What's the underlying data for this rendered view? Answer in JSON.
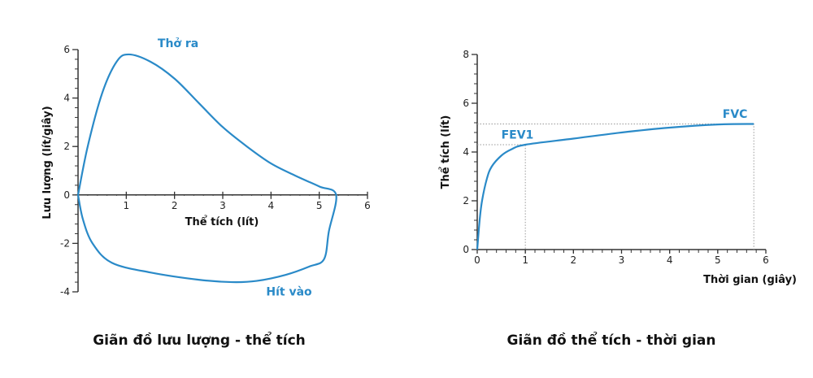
{
  "colors": {
    "curve": "#2a8ac8",
    "axis": "#333333",
    "guide": "#999999"
  },
  "chart_data": [
    {
      "type": "line",
      "caption": "Giãn đồ lưu lượng - thể tích",
      "xlabel": "Thể tích (lít)",
      "ylabel": "Lưu lượng (lít/giây)",
      "xlim": [
        0,
        6
      ],
      "ylim": [
        -4,
        6
      ],
      "xticks": [
        1,
        2,
        3,
        4,
        5,
        6
      ],
      "yticks": [
        -4,
        -2,
        0,
        2,
        4,
        6
      ],
      "grid": false,
      "annotations": [
        {
          "text": "Thở ra",
          "x": 1.65,
          "y": 6.1
        },
        {
          "text": "Hít vào",
          "x": 3.9,
          "y": -4.15
        }
      ],
      "series": [
        {
          "x": [
            0,
            0.2,
            0.5,
            0.8,
            1.05,
            1.5,
            2,
            2.5,
            3,
            3.5,
            4,
            4.5,
            5,
            5.35,
            5.2,
            5.1,
            4.8,
            4.3,
            3.7,
            3.2,
            2.5,
            1.5,
            0.7,
            0.3,
            0.1,
            0
          ],
          "y": [
            0,
            2,
            4.2,
            5.5,
            5.8,
            5.5,
            4.8,
            3.8,
            2.8,
            2.0,
            1.3,
            0.8,
            0.35,
            0,
            -1.5,
            -2.65,
            -2.95,
            -3.3,
            -3.55,
            -3.6,
            -3.5,
            -3.2,
            -2.8,
            -2,
            -1,
            0
          ]
        }
      ]
    },
    {
      "type": "line",
      "caption": "Giãn đồ thể tích - thời gian",
      "xlabel": "Thời gian (giây)",
      "ylabel": "Thể tích (lít)",
      "xlim": [
        0,
        6
      ],
      "ylim": [
        0,
        8
      ],
      "xticks": [
        0,
        1,
        2,
        3,
        4,
        5,
        6
      ],
      "yticks": [
        0,
        2,
        4,
        6,
        8
      ],
      "grid": false,
      "annotations": [
        {
          "text": "FEV1",
          "x": 0.5,
          "y": 4.55
        },
        {
          "text": "FVC",
          "x": 5.1,
          "y": 5.4
        }
      ],
      "reference_points": [
        {
          "label": "FEV1",
          "x": 1,
          "y": 4.3
        },
        {
          "label": "FVC",
          "x": 5.75,
          "y": 5.15
        }
      ],
      "series": [
        {
          "x": [
            0,
            0.05,
            0.1,
            0.2,
            0.3,
            0.5,
            0.7,
            1,
            2,
            3,
            4,
            5,
            5.75
          ],
          "y": [
            0,
            1.2,
            2,
            2.9,
            3.4,
            3.85,
            4.1,
            4.3,
            4.55,
            4.8,
            5.0,
            5.13,
            5.15
          ]
        }
      ]
    }
  ]
}
